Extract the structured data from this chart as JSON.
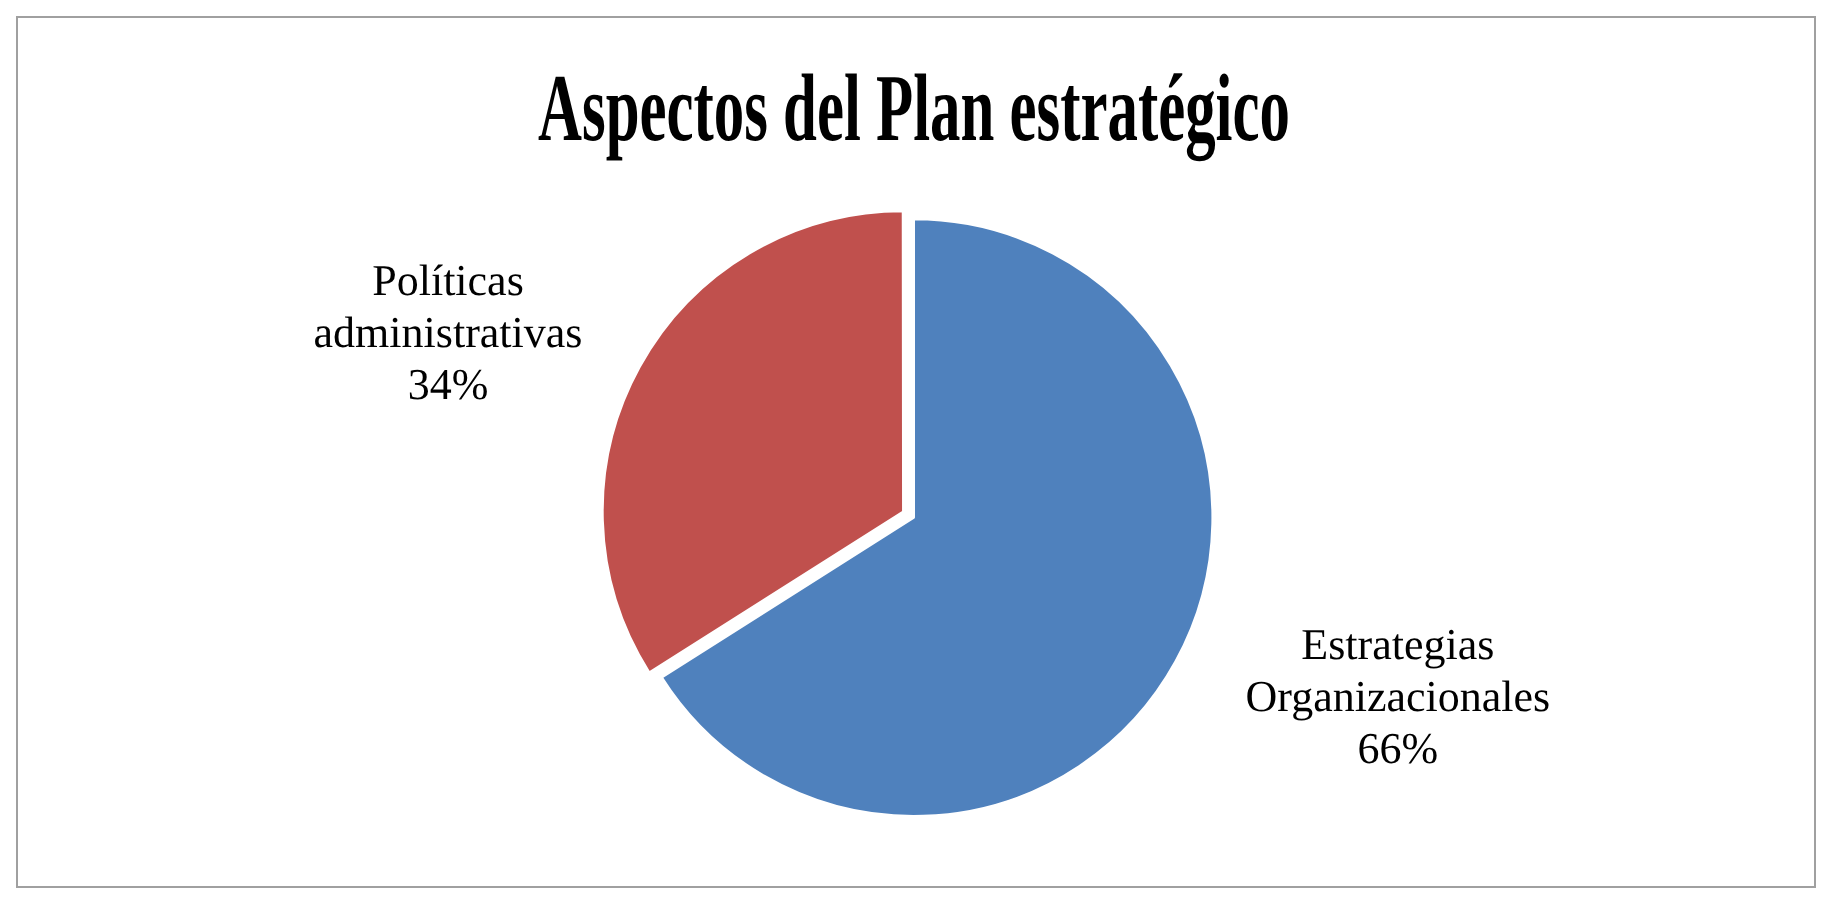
{
  "chart_data": {
    "type": "pie",
    "title": "Aspectos del Plan estratégico",
    "categories": [
      "Estrategias Organizacionales",
      "Políticas administrativas"
    ],
    "values": [
      66,
      34
    ],
    "colors": [
      "#4f81bd",
      "#c0504d"
    ],
    "value_labels": [
      "66%",
      "34%"
    ],
    "legend": false
  }
}
